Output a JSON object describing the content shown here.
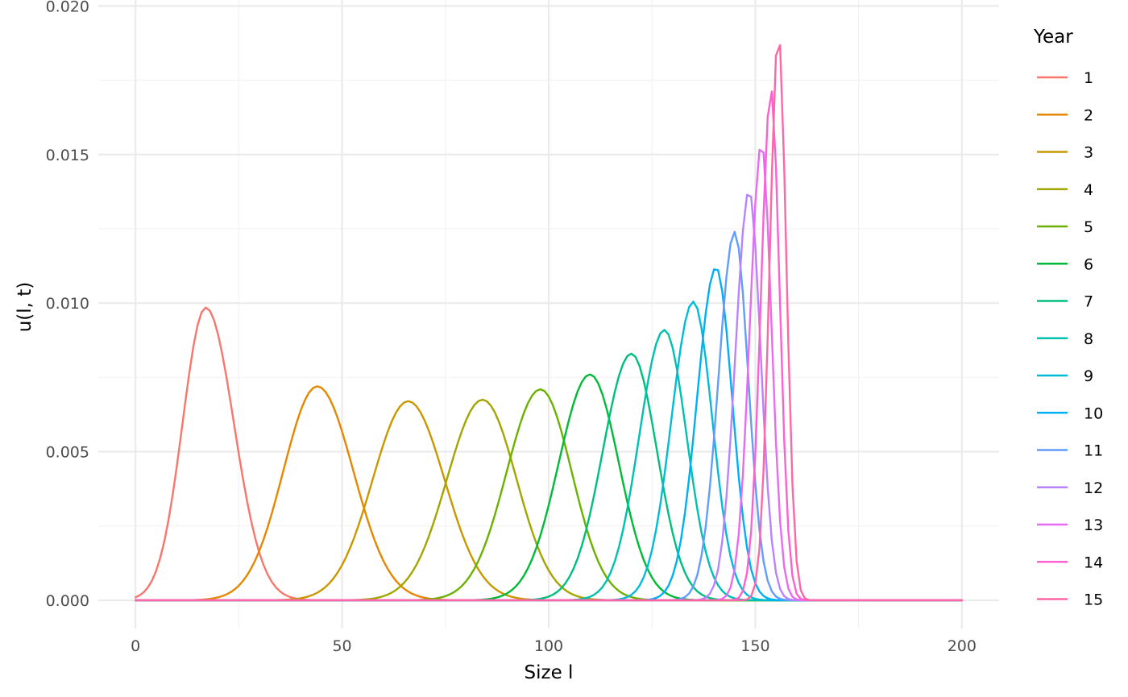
{
  "chart_data": {
    "type": "line",
    "xlabel": "Size l",
    "ylabel": "u(l, t)",
    "xlim": [
      -9,
      209
    ],
    "ylim": [
      -0.00095,
      0.0202
    ],
    "xticks": [
      0,
      50,
      100,
      150,
      200
    ],
    "xtick_labels": [
      "0",
      "50",
      "100",
      "150",
      "200"
    ],
    "yticks": [
      0,
      0.005,
      0.01,
      0.015,
      0.02
    ],
    "ytick_labels": [
      "0.000",
      "0.005",
      "0.010",
      "0.015",
      "0.020"
    ],
    "grid": true,
    "legend": {
      "title": "Year",
      "position": "right"
    },
    "x_range": [
      0,
      200
    ],
    "x_step": 1,
    "series": [
      {
        "name": "1",
        "color": "#F8766D",
        "peak_x": 17,
        "peak_y": 0.00985,
        "sigma_left": 5.6,
        "sigma_right": 6.8
      },
      {
        "name": "2",
        "color": "#E58700",
        "peak_x": 44,
        "peak_y": 0.0072,
        "sigma_left": 8.2,
        "sigma_right": 8.7
      },
      {
        "name": "3",
        "color": "#C99800",
        "peak_x": 66,
        "peak_y": 0.0067,
        "sigma_left": 8.6,
        "sigma_right": 8.8
      },
      {
        "name": "4",
        "color": "#A3A500",
        "peak_x": 84,
        "peak_y": 0.00675,
        "sigma_left": 8.6,
        "sigma_right": 8.2
      },
      {
        "name": "5",
        "color": "#6BB100",
        "peak_x": 98,
        "peak_y": 0.0071,
        "sigma_left": 8.2,
        "sigma_right": 7.6
      },
      {
        "name": "6",
        "color": "#00BA38",
        "peak_x": 110,
        "peak_y": 0.0076,
        "sigma_left": 7.6,
        "sigma_right": 7.0
      },
      {
        "name": "7",
        "color": "#00BF7D",
        "peak_x": 120,
        "peak_y": 0.0083,
        "sigma_left": 6.9,
        "sigma_right": 6.2
      },
      {
        "name": "8",
        "color": "#00C0AF",
        "peak_x": 128,
        "peak_y": 0.0091,
        "sigma_left": 6.1,
        "sigma_right": 5.4
      },
      {
        "name": "9",
        "color": "#00BCD8",
        "peak_x": 135,
        "peak_y": 0.01005,
        "sigma_left": 5.3,
        "sigma_right": 4.6
      },
      {
        "name": "10",
        "color": "#00B0F6",
        "peak_x": 140.5,
        "peak_y": 0.0112,
        "sigma_left": 4.6,
        "sigma_right": 3.9
      },
      {
        "name": "11",
        "color": "#619CFF",
        "peak_x": 145,
        "peak_y": 0.0124,
        "sigma_left": 3.9,
        "sigma_right": 3.3
      },
      {
        "name": "12",
        "color": "#B983FF",
        "peak_x": 148.5,
        "peak_y": 0.0138,
        "sigma_left": 3.3,
        "sigma_right": 2.8
      },
      {
        "name": "13",
        "color": "#E76BF3",
        "peak_x": 151.5,
        "peak_y": 0.0154,
        "sigma_left": 2.8,
        "sigma_right": 2.4
      },
      {
        "name": "14",
        "color": "#FD61D1",
        "peak_x": 153.8,
        "peak_y": 0.0172,
        "sigma_left": 2.4,
        "sigma_right": 2.1
      },
      {
        "name": "15",
        "color": "#FF67A4",
        "peak_x": 155.6,
        "peak_y": 0.0191,
        "sigma_left": 2.1,
        "sigma_right": 1.9
      }
    ]
  }
}
